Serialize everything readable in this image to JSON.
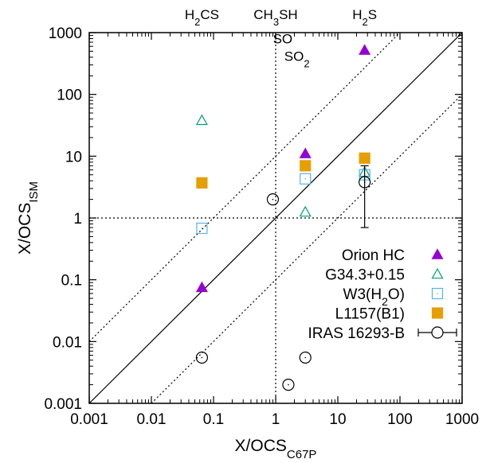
{
  "chart_data": {
    "type": "scatter",
    "xlabel": "X/OCS",
    "xlabel_sub": "C67P",
    "ylabel": "X/OCS",
    "ylabel_sub": "ISM",
    "x_scale": "log",
    "y_scale": "log",
    "xlim": [
      0.001,
      1000
    ],
    "ylim": [
      0.001,
      1000
    ],
    "x_ticks": [
      {
        "value": 0.001,
        "label": "0.001"
      },
      {
        "value": 0.01,
        "label": "0.01"
      },
      {
        "value": 0.1,
        "label": "0.1"
      },
      {
        "value": 1,
        "label": "1"
      },
      {
        "value": 10,
        "label": "10"
      },
      {
        "value": 100,
        "label": "100"
      },
      {
        "value": 1000,
        "label": "1000"
      }
    ],
    "y_ticks": [
      {
        "value": 0.001,
        "label": "0.001"
      },
      {
        "value": 0.01,
        "label": "0.01"
      },
      {
        "value": 0.1,
        "label": "0.1"
      },
      {
        "value": 1,
        "label": "1"
      },
      {
        "value": 10,
        "label": "10"
      },
      {
        "value": 100,
        "label": "100"
      },
      {
        "value": 1000,
        "label": "1000"
      }
    ],
    "grid": false,
    "legend_position": "bottom-right",
    "reference_lines": [
      {
        "kind": "ratio",
        "factor": 1,
        "style": "solid"
      },
      {
        "kind": "ratio",
        "factor": 10,
        "style": "dotted"
      },
      {
        "kind": "ratio",
        "factor": 0.1,
        "style": "dotted"
      },
      {
        "kind": "vertical",
        "value": 1,
        "style": "dotted"
      },
      {
        "kind": "horizontal",
        "value": 1,
        "style": "dotted"
      }
    ],
    "top_labels": [
      {
        "x": 0.065,
        "parts": [
          {
            "t": "H"
          },
          {
            "t": "2",
            "sub": true
          },
          {
            "t": "CS"
          }
        ]
      },
      {
        "x": 1.0,
        "parts": [
          {
            "t": "CH"
          },
          {
            "t": "3",
            "sub": true
          },
          {
            "t": "SH"
          }
        ]
      },
      {
        "x": 27,
        "parts": [
          {
            "t": "H"
          },
          {
            "t": "2",
            "sub": true
          },
          {
            "t": "S"
          }
        ]
      }
    ],
    "annotations": [
      {
        "x": 1.3,
        "y": 800,
        "parts": [
          {
            "t": "SO"
          }
        ]
      },
      {
        "x": 2.2,
        "y": 420,
        "parts": [
          {
            "t": "SO"
          },
          {
            "t": "2",
            "sub": true
          }
        ]
      }
    ],
    "series": [
      {
        "name": "Orion HC",
        "marker": "triangle-filled",
        "color": "#9400d3",
        "points": [
          [
            0.065,
            0.075
          ],
          [
            3.0,
            11
          ],
          [
            27,
            520
          ]
        ]
      },
      {
        "name": "G34.3+0.15",
        "marker": "triangle-open",
        "color": "#009e73",
        "points": [
          [
            0.065,
            38
          ],
          [
            3.0,
            1.25
          ],
          [
            27,
            5.5
          ]
        ]
      },
      {
        "name": "W3(H2O)",
        "name_parts": [
          {
            "t": "W3(H"
          },
          {
            "t": "2",
            "sub": true
          },
          {
            "t": "O)"
          }
        ],
        "marker": "square-open",
        "color": "#56b4e9",
        "points": [
          [
            0.065,
            0.68
          ],
          [
            3.0,
            4.3
          ],
          [
            27,
            5.0
          ]
        ]
      },
      {
        "name": "L1157(B1)",
        "marker": "square-filled",
        "color": "#e69f00",
        "points": [
          [
            0.065,
            3.7
          ],
          [
            3.0,
            7.0
          ],
          [
            27,
            9.3
          ]
        ]
      },
      {
        "name": "IRAS 16293-B",
        "marker": "circle-open-errorbar",
        "color": "#000000",
        "points": [
          [
            0.065,
            0.0055
          ],
          [
            0.9,
            2.0
          ],
          [
            3.0,
            0.0055
          ],
          [
            1.6,
            0.002
          ],
          [
            27,
            3.8
          ]
        ],
        "error_bars": [
          {
            "x": 27,
            "ylow": 0.7,
            "yhigh": 7.0
          }
        ]
      }
    ]
  }
}
